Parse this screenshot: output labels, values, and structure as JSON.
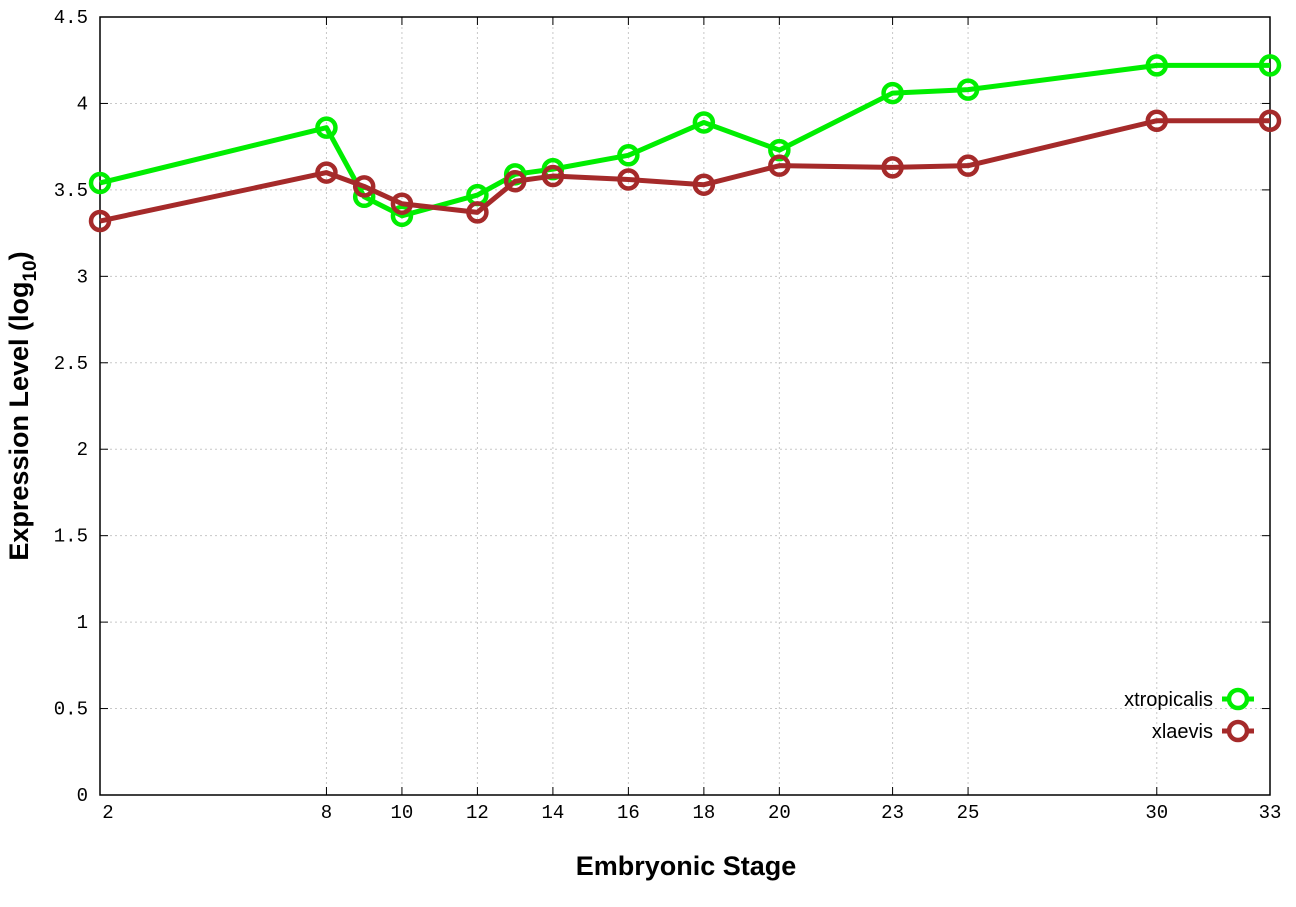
{
  "chart_data": {
    "type": "line",
    "title": "",
    "xlabel": "Embryonic Stage",
    "ylabel": "Expression Level (log",
    "ylabel_subscript": "10",
    "ylabel_suffix": ")",
    "xlim": [
      2,
      33
    ],
    "ylim": [
      0,
      4.5
    ],
    "xticks": [
      2,
      8,
      10,
      12,
      14,
      16,
      18,
      20,
      23,
      25,
      30,
      33
    ],
    "yticks": [
      0,
      0.5,
      1,
      1.5,
      2,
      2.5,
      3,
      3.5,
      4,
      4.5
    ],
    "ytick_labels": [
      "0",
      "0.5",
      "1",
      "1.5",
      "2",
      "2.5",
      "3",
      "3.5",
      "4",
      "4.5"
    ],
    "grid": true,
    "legend_position": "bottom-right",
    "x": [
      2,
      8,
      9,
      10,
      12,
      13,
      14,
      16,
      18,
      20,
      23,
      25,
      30,
      33
    ],
    "series": [
      {
        "name": "xtropicalis",
        "color": "#00ee00",
        "values": [
          3.54,
          3.86,
          3.46,
          3.35,
          3.47,
          3.59,
          3.62,
          3.7,
          3.89,
          3.73,
          4.06,
          4.08,
          4.22,
          4.22
        ]
      },
      {
        "name": "xlaevis",
        "color": "#a52a2a",
        "values": [
          3.32,
          3.6,
          3.52,
          3.42,
          3.37,
          3.55,
          3.58,
          3.56,
          3.53,
          3.64,
          3.63,
          3.64,
          3.9,
          3.9
        ]
      }
    ]
  }
}
